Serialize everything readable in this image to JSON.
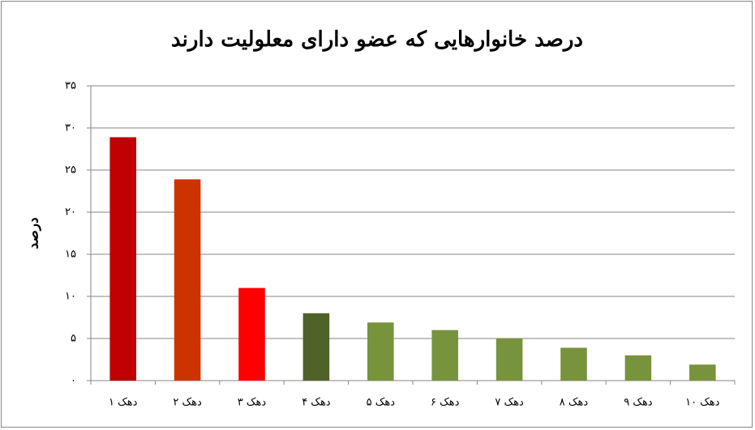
{
  "chart_data": {
    "type": "bar",
    "title": "درصد خانوارهایی که عضو دارای معلولیت دارند",
    "y_label": "درصد",
    "categories": [
      "دهک ۱",
      "دهک ۲",
      "دهک ۳",
      "دهک ۴",
      "دهک ۵",
      "دهک ۶",
      "دهک ۷",
      "دهک ۸",
      "دهک ۹",
      "دهک ۱۰"
    ],
    "values": [
      28.9,
      23.9,
      11,
      8,
      6.9,
      6,
      5,
      3.9,
      3,
      1.9
    ],
    "colors": [
      "#c00000",
      "#cc3300",
      "#ff0000",
      "#4f6228",
      "#77933c",
      "#77933c",
      "#77933c",
      "#77933c",
      "#77933c",
      "#77933c"
    ],
    "ylim": [
      0,
      35
    ],
    "yticks": [
      {
        "value": 0,
        "label": "۰"
      },
      {
        "value": 5,
        "label": "۵"
      },
      {
        "value": 10,
        "label": "۱۰"
      },
      {
        "value": 15,
        "label": "۱۵"
      },
      {
        "value": 20,
        "label": "۲۰"
      },
      {
        "value": 25,
        "label": "۲۵"
      },
      {
        "value": 30,
        "label": "۳۰"
      },
      {
        "value": 35,
        "label": "۳۵"
      }
    ],
    "grid": true
  }
}
